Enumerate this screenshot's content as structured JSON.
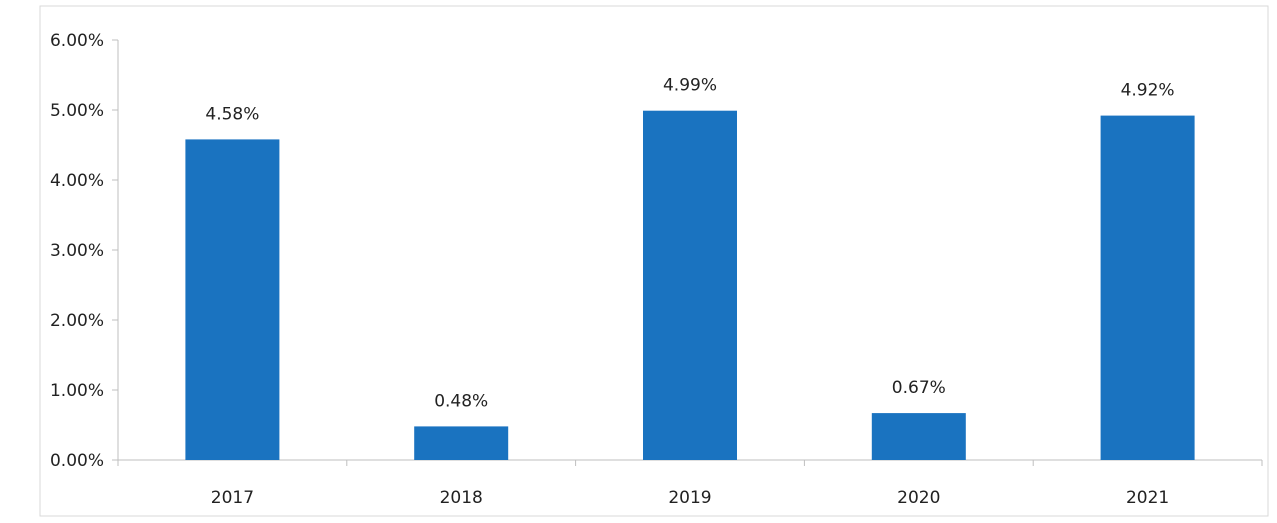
{
  "chart_data": {
    "type": "bar",
    "title": "",
    "xlabel": "",
    "ylabel": "",
    "categories": [
      "2017",
      "2018",
      "2019",
      "2020",
      "2021"
    ],
    "values": [
      4.58,
      0.48,
      4.99,
      0.67,
      4.92
    ],
    "data_labels": [
      "4.58%",
      "0.48%",
      "4.99%",
      "0.67%",
      "4.92%"
    ],
    "ylim": [
      0,
      6
    ],
    "yticks": [
      0,
      1,
      2,
      3,
      4,
      5,
      6
    ],
    "ytick_labels": [
      "0.00%",
      "1.00%",
      "2.00%",
      "3.00%",
      "4.00%",
      "5.00%",
      "6.00%"
    ],
    "grid": false,
    "legend": "none",
    "bar_color": "#1a73c0"
  }
}
